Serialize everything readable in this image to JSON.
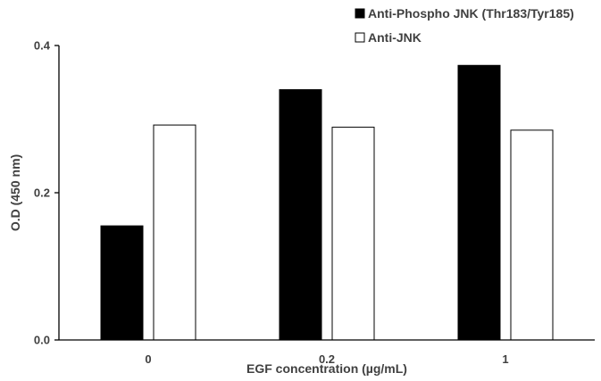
{
  "chart_data": {
    "type": "bar",
    "title": "",
    "xlabel": "EGF concentration (µg/mL)",
    "ylabel": "O.D (450 nm)",
    "categories": [
      "0",
      "0.2",
      "1"
    ],
    "ylim": [
      0,
      0.4
    ],
    "yticks": [
      "0.0",
      "0.2",
      "0.4"
    ],
    "ytick_values": [
      0,
      0.2,
      0.4
    ],
    "grid": false,
    "legend_position": "top-right",
    "series": [
      {
        "name": "Anti-Phospho JNK (Thr183/Tyr185)",
        "values": [
          0.155,
          0.34,
          0.373
        ],
        "color": "#000000",
        "legend_marker": "■"
      },
      {
        "name": "Anti-JNK",
        "values": [
          0.292,
          0.289,
          0.285
        ],
        "color": "#ffffff",
        "legend_marker": "□"
      }
    ]
  }
}
